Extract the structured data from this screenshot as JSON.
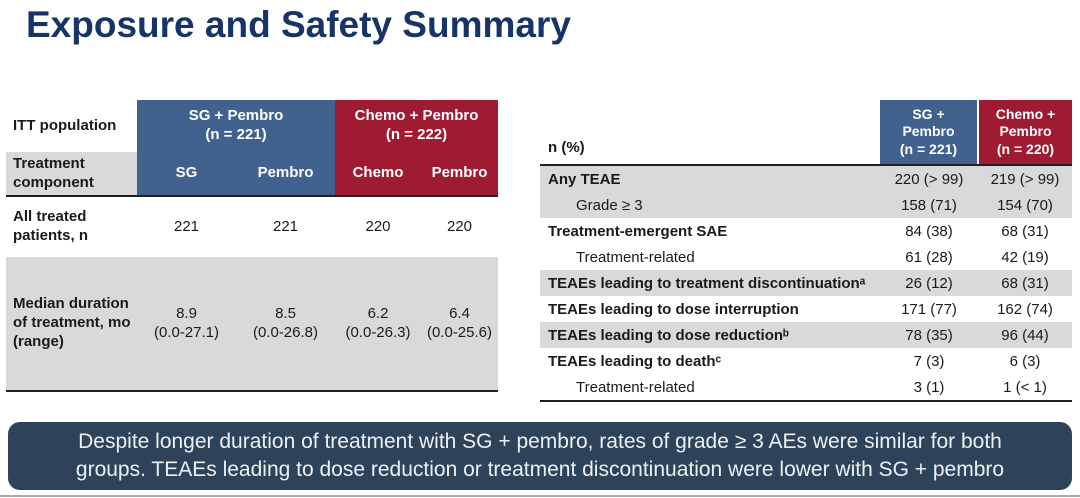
{
  "title": "Exposure and Safety Summary",
  "colors": {
    "title_navy": "#173468",
    "group_blue": "#41618E",
    "group_red": "#9E1B32",
    "row_gray": "#D9D9D9",
    "banner_navy": "#2E4359",
    "border_dark": "#1F1F1F"
  },
  "exposure_table": {
    "corner_top": "ITT population",
    "corner_bottom": "Treatment component",
    "group_headers": [
      {
        "label": "SG + Pembro\n(n = 221)",
        "color": "#41618E"
      },
      {
        "label": "Chemo + Pembro\n(n = 222)",
        "color": "#9E1B32"
      }
    ],
    "component_headers": [
      "SG",
      "Pembro",
      "Chemo",
      "Pembro"
    ],
    "rows": [
      {
        "label": "All treated patients, n",
        "values": [
          "221",
          "221",
          "220",
          "220"
        ]
      },
      {
        "label": "Median duration of treatment, mo (range)",
        "values": [
          "8.9\n(0.0-27.1)",
          "8.5\n(0.0-26.8)",
          "6.2\n(0.0-26.3)",
          "6.4\n(0.0-25.6)"
        ]
      }
    ]
  },
  "safety_table": {
    "header_label": "n (%)",
    "col_headers": [
      {
        "label": "SG +\nPembro\n(n = 221)",
        "color": "#41618E"
      },
      {
        "label": "Chemo +\nPembro\n(n = 220)",
        "color": "#9E1B32"
      }
    ],
    "rows": [
      {
        "label": "Any TEAE",
        "sg": "220 (> 99)",
        "chemo": "219 (> 99)"
      },
      {
        "label": "Grade ≥ 3",
        "sg": "158 (71)",
        "chemo": "154 (70)"
      },
      {
        "label": "Treatment-emergent SAE",
        "sg": "84 (38)",
        "chemo": "68 (31)"
      },
      {
        "label": "Treatment-related",
        "sg": "61 (28)",
        "chemo": "42 (19)"
      },
      {
        "label": "TEAEs leading to treatment discontinuationᵃ",
        "sg": "26 (12)",
        "chemo": "68 (31)"
      },
      {
        "label": "TEAEs leading to dose interruption",
        "sg": "171 (77)",
        "chemo": "162 (74)"
      },
      {
        "label": "TEAEs leading to dose reductionᵇ",
        "sg": "78 (35)",
        "chemo": "96 (44)"
      },
      {
        "label": "TEAEs leading to deathᶜ",
        "sg": "7 (3)",
        "chemo": "6 (3)"
      },
      {
        "label": "Treatment-related",
        "sg": "3 (1)",
        "chemo": "1 (< 1)"
      }
    ]
  },
  "banner": {
    "text": "Despite longer duration of treatment with SG + pembro, rates of grade ≥ 3 AEs were similar for both groups. TEAEs leading to dose reduction or treatment discontinuation were lower with SG + pembro"
  }
}
